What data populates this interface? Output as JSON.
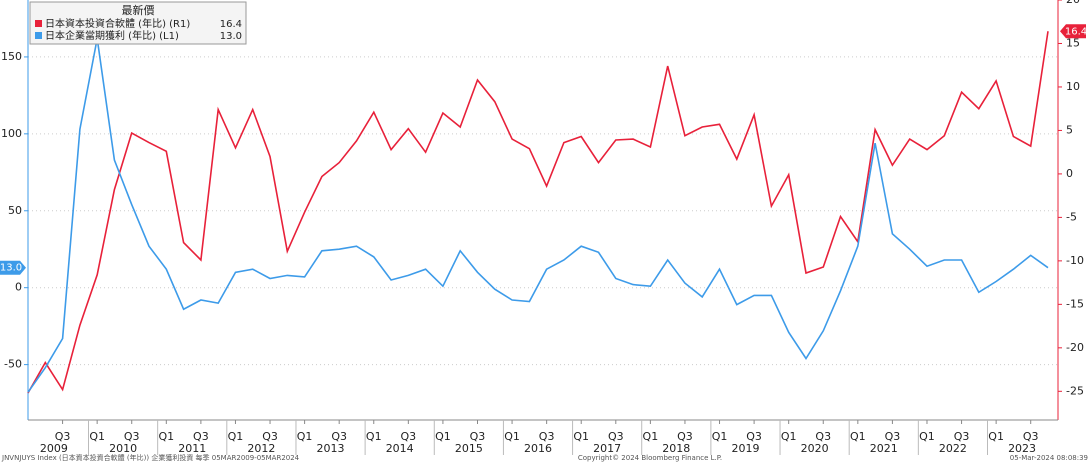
{
  "chart_data": {
    "type": "line",
    "categories": [
      null,
      null,
      "Q3",
      null,
      "Q1",
      null,
      "Q3",
      null,
      "Q1",
      null,
      "Q3",
      null,
      "Q1",
      null,
      "Q3",
      null,
      "Q1",
      null,
      "Q3",
      null,
      "Q1",
      null,
      "Q3",
      null,
      "Q1",
      null,
      "Q3",
      null,
      "Q1",
      null,
      "Q3",
      null,
      "Q1",
      null,
      "Q3",
      null,
      "Q1",
      null,
      "Q3",
      null,
      "Q1",
      null,
      "Q3",
      null,
      "Q1",
      null,
      "Q3",
      null,
      "Q1",
      null,
      "Q3",
      null,
      "Q1",
      null,
      "Q3",
      null,
      "Q1",
      null,
      "Q3",
      null
    ],
    "years": [
      "2009",
      "2010",
      "2011",
      "2012",
      "2013",
      "2014",
      "2015",
      "2016",
      "2017",
      "2018",
      "2019",
      "2020",
      "2021",
      "2022",
      "2023"
    ],
    "legend_title": "最新價",
    "series": [
      {
        "name": "日本資本投資合軟體 (年比) (R1)",
        "color": "#e8213a",
        "axis": "y2",
        "values": [
          -25.2,
          -21.7,
          -24.8,
          -17.4,
          -11.6,
          -1.8,
          4.7,
          3.6,
          2.6,
          -7.9,
          -9.9,
          7.4,
          3.0,
          7.4,
          2.0,
          -8.9,
          -4.4,
          -0.3,
          1.3,
          3.8,
          7.1,
          2.8,
          5.2,
          2.5,
          7.0,
          5.4,
          10.8,
          8.3,
          4.0,
          2.9,
          -1.4,
          3.6,
          4.3,
          1.3,
          3.9,
          4.0,
          3.1,
          12.4,
          4.4,
          5.4,
          5.7,
          1.7,
          6.8,
          -3.7,
          -0.1,
          -11.4,
          -10.7,
          -4.9,
          -7.8,
          5.1,
          1.0,
          4.0,
          2.8,
          4.4,
          9.4,
          7.5,
          10.7,
          4.3,
          3.2,
          16.4
        ],
        "value_labels": [
          null,
          null,
          null,
          null,
          null,
          null,
          null,
          null,
          null,
          null,
          null,
          null,
          null,
          null,
          null,
          null,
          null,
          null,
          null,
          null,
          null,
          null,
          null,
          null,
          null,
          null,
          null,
          null,
          null,
          null,
          null,
          null,
          null,
          null,
          null,
          null,
          null,
          null,
          null,
          null,
          null,
          null,
          null,
          null,
          null,
          null,
          null,
          null,
          null,
          null,
          null,
          null,
          null,
          null,
          null,
          null,
          null,
          null,
          null,
          "16.4"
        ]
      },
      {
        "name": "日本企業當期獲利 (年比) (L1)",
        "color": "#3d9be9",
        "axis": "y",
        "values": [
          -68,
          -52,
          -33,
          103,
          162,
          83,
          54,
          27,
          12,
          -14,
          -8,
          -10,
          10,
          12,
          6,
          8,
          7,
          24,
          25,
          27,
          20,
          5,
          8,
          12,
          1,
          24,
          10,
          -1,
          -8,
          -9,
          12,
          18,
          27,
          23,
          6,
          2,
          1,
          18,
          3,
          -6,
          12,
          -11,
          -5,
          -5,
          -29,
          -46,
          -28,
          -2,
          27,
          94,
          35,
          25,
          14,
          18,
          18,
          -3,
          4,
          12,
          21,
          13
        ],
        "value_labels": [
          null,
          null,
          null,
          null,
          null,
          null,
          null,
          null,
          null,
          null,
          null,
          null,
          null,
          null,
          null,
          null,
          null,
          null,
          null,
          null,
          null,
          null,
          null,
          null,
          null,
          null,
          null,
          null,
          null,
          null,
          null,
          null,
          null,
          null,
          null,
          null,
          null,
          null,
          null,
          null,
          null,
          null,
          null,
          null,
          null,
          null,
          null,
          null,
          null,
          null,
          null,
          null,
          null,
          null,
          null,
          null,
          null,
          null,
          null,
          "13.0"
        ]
      }
    ],
    "ylim": [
      -86,
      187
    ],
    "yticks": [
      -50,
      0,
      50,
      100,
      150
    ],
    "y2lim": [
      -28.3,
      20
    ],
    "y2ticks": [
      -25,
      -20,
      -15,
      -10,
      -5,
      0,
      5,
      10,
      15,
      20
    ],
    "grid": true,
    "footer_left": "JNVNJUYS Index (日本資本投資合軟體 (年比)) 企業獲利投資 每季 05MAR2009-05MAR2024",
    "footer_center": "Copyright© 2024 Bloomberg Finance L.P.",
    "footer_right": "05-Mar-2024 08:08:39"
  }
}
